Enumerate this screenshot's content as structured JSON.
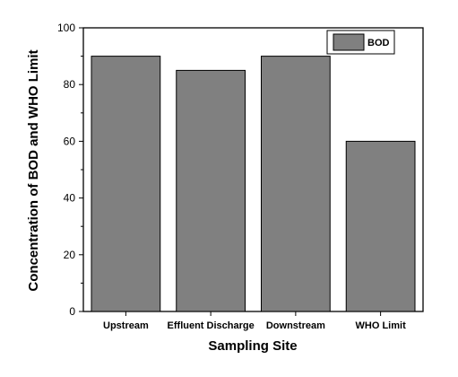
{
  "chart_data": {
    "type": "bar",
    "categories": [
      "Upstream",
      "Effluent Discharge",
      "Downstream",
      "WHO Limit"
    ],
    "series": [
      {
        "name": "BOD",
        "values": [
          90,
          85,
          90,
          60
        ],
        "color": "#808080"
      }
    ],
    "title": "",
    "xlabel": "Sampling Site",
    "ylabel": "Concentration of BOD and WHO Limit",
    "ylim": [
      0,
      100
    ],
    "yticks": [
      0,
      20,
      40,
      60,
      80,
      100
    ],
    "grid": false,
    "legend_position": "top-right"
  }
}
